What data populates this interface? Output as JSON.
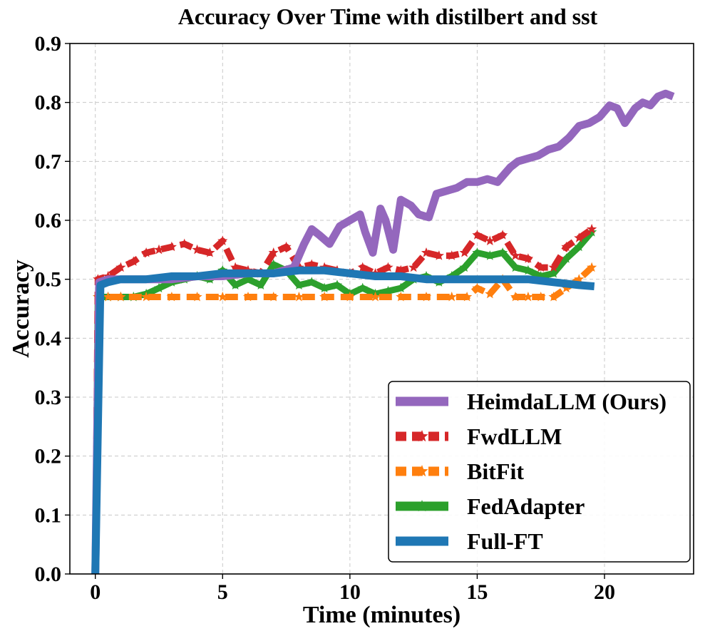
{
  "chart_data": {
    "type": "line",
    "title": "Accuracy Over Time with distilbert and sst",
    "xlabel": "Time (minutes)",
    "ylabel": "Accuracy",
    "xlim": [
      -1,
      23.5
    ],
    "ylim": [
      0.0,
      0.9
    ],
    "xticks": [
      0,
      5,
      10,
      15,
      20
    ],
    "yticks": [
      0.0,
      0.1,
      0.2,
      0.3,
      0.4,
      0.5,
      0.6,
      0.7,
      0.8,
      0.9
    ],
    "ytick_labels": [
      "0.0",
      "0.1",
      "0.2",
      "0.3",
      "0.4",
      "0.5",
      "0.6",
      "0.7",
      "0.8",
      "0.9"
    ],
    "xtick_labels": [
      "0",
      "5",
      "10",
      "15",
      "20"
    ],
    "grid": true,
    "legend_position": "lower-right",
    "series": [
      {
        "name": "HeimdaLLM (Ours)",
        "color": "#9467bd",
        "style": "solid",
        "x": [
          0,
          0.15,
          0.5,
          1,
          2,
          3,
          4,
          5,
          6,
          7,
          7.8,
          8.2,
          8.5,
          8.8,
          9.2,
          9.6,
          10,
          10.4,
          10.6,
          10.9,
          11.2,
          11.4,
          11.7,
          12,
          12.4,
          12.7,
          13.1,
          13.4,
          13.8,
          14.2,
          14.6,
          15,
          15.4,
          15.8,
          16.1,
          16.3,
          16.6,
          17,
          17.4,
          17.8,
          18.2,
          18.6,
          19,
          19.4,
          19.8,
          20.2,
          20.5,
          20.8,
          21.2,
          21.5,
          21.8,
          22.1,
          22.4,
          22.7
        ],
        "y": [
          0.0,
          0.495,
          0.5,
          0.5,
          0.5,
          0.5,
          0.505,
          0.505,
          0.51,
          0.51,
          0.52,
          0.56,
          0.585,
          0.575,
          0.56,
          0.59,
          0.6,
          0.61,
          0.58,
          0.545,
          0.62,
          0.6,
          0.55,
          0.635,
          0.625,
          0.61,
          0.605,
          0.645,
          0.65,
          0.655,
          0.665,
          0.665,
          0.67,
          0.665,
          0.68,
          0.69,
          0.7,
          0.705,
          0.71,
          0.72,
          0.725,
          0.74,
          0.76,
          0.765,
          0.775,
          0.795,
          0.79,
          0.765,
          0.79,
          0.8,
          0.795,
          0.81,
          0.815,
          0.81
        ]
      },
      {
        "name": "FwdLLM",
        "color": "#d62728",
        "style": "dashed-star",
        "x": [
          0,
          0.1,
          0.5,
          1,
          1.5,
          2,
          2.5,
          3,
          3.5,
          4,
          4.5,
          5,
          5.5,
          6,
          6.5,
          7,
          7.5,
          8,
          8.5,
          9,
          9.5,
          10,
          10.5,
          11,
          11.5,
          12,
          12.5,
          13,
          13.5,
          14,
          14.5,
          15,
          15.5,
          16,
          16.5,
          17,
          17.5,
          18,
          18.5,
          19,
          19.5
        ],
        "y": [
          0.0,
          0.5,
          0.505,
          0.52,
          0.53,
          0.545,
          0.55,
          0.555,
          0.56,
          0.55,
          0.545,
          0.565,
          0.52,
          0.515,
          0.51,
          0.545,
          0.555,
          0.52,
          0.525,
          0.52,
          0.515,
          0.51,
          0.52,
          0.51,
          0.52,
          0.515,
          0.52,
          0.545,
          0.54,
          0.54,
          0.545,
          0.575,
          0.565,
          0.575,
          0.54,
          0.535,
          0.52,
          0.52,
          0.555,
          0.57,
          0.585
        ]
      },
      {
        "name": "BitFit",
        "color": "#ff7f0e",
        "style": "dashed-star",
        "x": [
          0,
          0.1,
          0.5,
          1,
          2,
          3,
          4,
          5,
          6,
          7,
          8,
          9,
          10,
          11,
          12,
          13,
          14,
          14.6,
          15,
          15.5,
          16,
          16.5,
          17,
          17.5,
          18,
          18.5,
          19,
          19.5
        ],
        "y": [
          0.0,
          0.47,
          0.47,
          0.47,
          0.47,
          0.47,
          0.47,
          0.47,
          0.47,
          0.47,
          0.47,
          0.47,
          0.47,
          0.47,
          0.47,
          0.47,
          0.47,
          0.47,
          0.485,
          0.475,
          0.5,
          0.47,
          0.47,
          0.47,
          0.47,
          0.485,
          0.5,
          0.52
        ]
      },
      {
        "name": "FedAdapter",
        "color": "#2ca02c",
        "style": "solid-star",
        "x": [
          0,
          0.1,
          0.5,
          1,
          1.5,
          2,
          2.5,
          3,
          3.5,
          4,
          4.5,
          5,
          5.5,
          6,
          6.5,
          7,
          7.5,
          8,
          8.5,
          9,
          9.5,
          10,
          10.5,
          11,
          11.5,
          12,
          12.5,
          13,
          13.5,
          14,
          14.5,
          15,
          15.5,
          16,
          16.5,
          17,
          17.5,
          18,
          18.5,
          19,
          19.5
        ],
        "y": [
          0.0,
          0.47,
          0.47,
          0.47,
          0.47,
          0.475,
          0.485,
          0.495,
          0.5,
          0.505,
          0.5,
          0.515,
          0.49,
          0.5,
          0.49,
          0.525,
          0.515,
          0.49,
          0.495,
          0.485,
          0.49,
          0.475,
          0.485,
          0.475,
          0.48,
          0.485,
          0.5,
          0.505,
          0.495,
          0.505,
          0.52,
          0.545,
          0.54,
          0.545,
          0.52,
          0.515,
          0.505,
          0.51,
          0.535,
          0.555,
          0.58
        ]
      },
      {
        "name": "Full-FT",
        "color": "#1f77b4",
        "style": "solid",
        "x": [
          0,
          0.2,
          0.5,
          1,
          2,
          3,
          4,
          5,
          6,
          7,
          8,
          9,
          10,
          11,
          12,
          13,
          14,
          15,
          16,
          17,
          18,
          19,
          19.6
        ],
        "y": [
          0.0,
          0.49,
          0.495,
          0.5,
          0.5,
          0.505,
          0.505,
          0.51,
          0.51,
          0.51,
          0.515,
          0.515,
          0.51,
          0.505,
          0.505,
          0.5,
          0.5,
          0.5,
          0.5,
          0.5,
          0.495,
          0.49,
          0.488
        ]
      }
    ]
  }
}
